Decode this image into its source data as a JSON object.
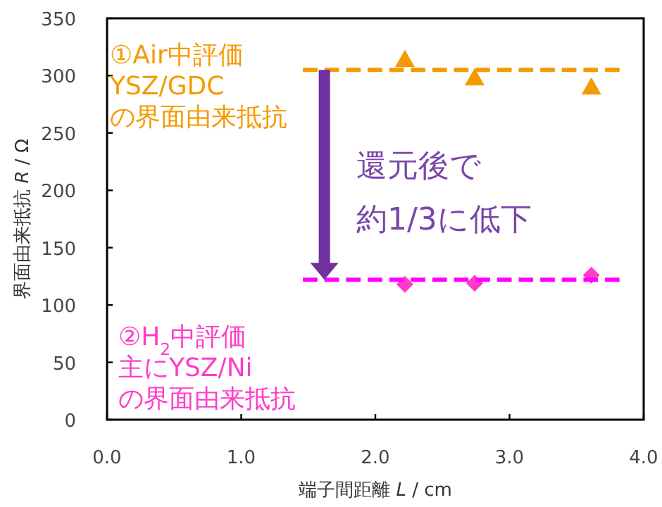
{
  "chart_data": {
    "type": "scatter",
    "xlabel": "端子間距離 *L*  / cm",
    "ylabel": "界面由来抵抗 *R* / Ω",
    "xlim": [
      0,
      4
    ],
    "xticks": [
      {
        "value": 0,
        "label": "0.0"
      },
      {
        "value": 1,
        "label": "1.0"
      },
      {
        "value": 2,
        "label": "2.0"
      },
      {
        "value": 3,
        "label": "3.0"
      },
      {
        "value": 4,
        "label": "4.0"
      }
    ],
    "ylim": [
      0,
      350
    ],
    "yticks": [
      0,
      50,
      100,
      150,
      200,
      250,
      300,
      350
    ],
    "grid": false,
    "series": [
      {
        "type": "scatter",
        "name": "①Air中評価YSZ/GDCの界面由来抵抗",
        "color": "#f59a00",
        "marker": "triangle",
        "x": [
          2.22,
          2.74,
          3.61
        ],
        "values": [
          314,
          298,
          290
        ]
      },
      {
        "type": "line",
        "color": "#f59a00",
        "line_style": "dashed",
        "marker": "none",
        "x": [
          1.46,
          3.82
        ],
        "values": [
          305,
          305
        ]
      },
      {
        "type": "scatter",
        "name": "②H$_{2}$中評価主にYSZ/Niの界面由来抵抗",
        "color": "#ff3cc8",
        "marker": "diamond",
        "x": [
          2.22,
          2.74,
          3.61
        ],
        "values": [
          118,
          119,
          126
        ]
      },
      {
        "type": "line",
        "color": "#ff00ff",
        "line_style": "dashed",
        "marker": "none",
        "x": [
          1.46,
          3.82
        ],
        "values": [
          122,
          122
        ]
      }
    ],
    "annotations": [
      "還元後で約1/3に低下"
    ]
  }
}
